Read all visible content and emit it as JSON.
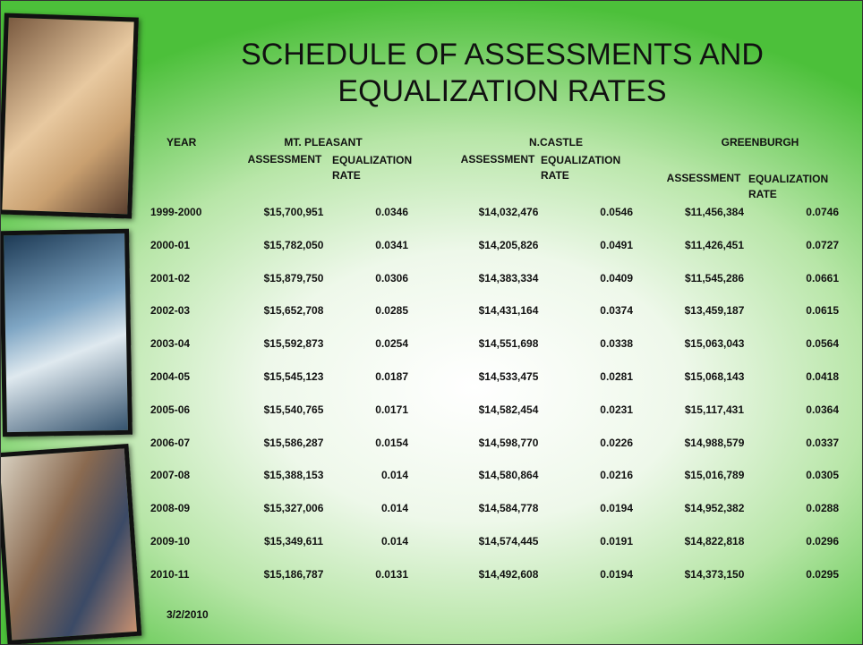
{
  "title": "SCHEDULE OF ASSESSMENTS AND EQUALIZATION RATES",
  "header": {
    "year": "YEAR",
    "groups": [
      {
        "name": "MT. PLEASANT",
        "assessment": "ASSESSMENT",
        "rate": "EQUALIZATION RATE"
      },
      {
        "name": "N.CASTLE",
        "assessment": "ASSESSMENT",
        "rate": "EQUALIZATION RATE"
      },
      {
        "name": "GREENBURGH",
        "assessment": "ASSESSMENT",
        "rate": "EQUALIZATION RATE"
      }
    ]
  },
  "rows": [
    [
      "1999-2000",
      "$15,700,951",
      "0.0346",
      "$14,032,476",
      "0.0546",
      "$11,456,384",
      "0.0746"
    ],
    [
      "2000-01",
      "$15,782,050",
      "0.0341",
      "$14,205,826",
      "0.0491",
      "$11,426,451",
      "0.0727"
    ],
    [
      "2001-02",
      "$15,879,750",
      "0.0306",
      "$14,383,334",
      "0.0409",
      "$11,545,286",
      "0.0661"
    ],
    [
      "2002-03",
      "$15,652,708",
      "0.0285",
      "$14,431,164",
      "0.0374",
      "$13,459,187",
      "0.0615"
    ],
    [
      "2003-04",
      "$15,592,873",
      "0.0254",
      "$14,551,698",
      "0.0338",
      "$15,063,043",
      "0.0564"
    ],
    [
      "2004-05",
      "$15,545,123",
      "0.0187",
      "$14,533,475",
      "0.0281",
      "$15,068,143",
      "0.0418"
    ],
    [
      "2005-06",
      "$15,540,765",
      "0.0171",
      "$14,582,454",
      "0.0231",
      "$15,117,431",
      "0.0364"
    ],
    [
      "2006-07",
      "$15,586,287",
      "0.0154",
      "$14,598,770",
      "0.0226",
      "$14,988,579",
      "0.0337"
    ],
    [
      "2007-08",
      "$15,388,153",
      "0.014",
      "$14,580,864",
      "0.0216",
      "$15,016,789",
      "0.0305"
    ],
    [
      "2008-09",
      "$15,327,006",
      "0.014",
      "$14,584,778",
      "0.0194",
      "$14,952,382",
      "0.0288"
    ],
    [
      "2009-10",
      "$15,349,611",
      "0.014",
      "$14,574,445",
      "0.0191",
      "$14,822,818",
      "0.0296"
    ],
    [
      "2010-11",
      "$15,186,787",
      "0.0131",
      "$14,492,608",
      "0.0194",
      "$14,373,150",
      "0.0295"
    ]
  ],
  "date": "3/2/2010"
}
